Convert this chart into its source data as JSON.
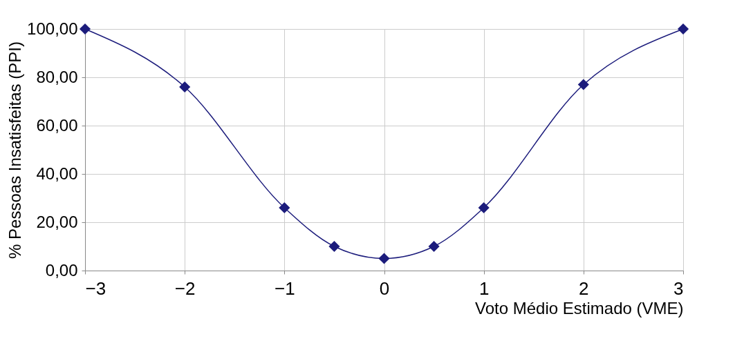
{
  "chart_data": {
    "type": "line",
    "xlabel": "Voto Médio Estimado (VME)",
    "ylabel": "% Pessoas Insatisfeitas (PPI)",
    "x": [
      -3,
      -2,
      -1,
      -0.5,
      0,
      0.5,
      1,
      2,
      3
    ],
    "series": [
      {
        "color": "#1c1c7c",
        "values": [
          100,
          76,
          26,
          10,
          5,
          10,
          26,
          77,
          100
        ]
      }
    ],
    "xlim": [
      -3,
      3
    ],
    "xticks": [
      -3,
      -2,
      -1,
      0,
      1,
      2,
      3
    ],
    "ylim": [
      0,
      100
    ],
    "yticks": [
      {
        "value": 0,
        "label": "0,00"
      },
      {
        "value": 20,
        "label": "20,00"
      },
      {
        "value": 40,
        "label": "40,00"
      },
      {
        "value": 60,
        "label": "60,00"
      },
      {
        "value": 80,
        "label": "80,00"
      },
      {
        "value": 100,
        "label": "100,00"
      }
    ],
    "grid": true,
    "marker": "diamond",
    "line_style": "solid"
  }
}
